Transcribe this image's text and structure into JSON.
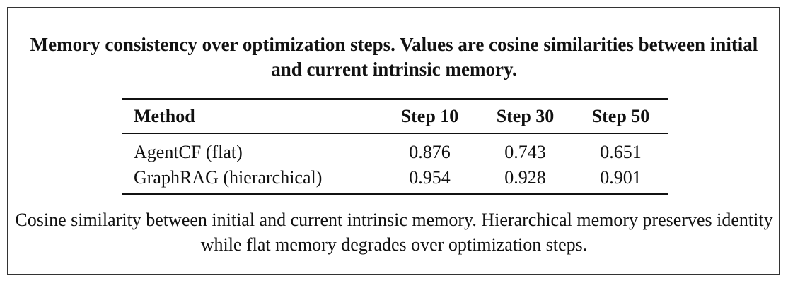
{
  "caption": {
    "title": "Memory consistency over optimization steps. Values are cosine similarities between initial and current intrinsic memory.",
    "note": "Cosine similarity between initial and current intrinsic memory. Hierarchical memory preserves identity while flat memory degrades over optimization steps."
  },
  "table": {
    "header": [
      "Method",
      "Step 10",
      "Step 30",
      "Step 50"
    ],
    "rows": [
      [
        "AgentCF (flat)",
        0.876,
        0.743,
        0.651
      ],
      [
        "GraphRAG (hierarchical)",
        0.954,
        0.928,
        0.901
      ]
    ]
  }
}
